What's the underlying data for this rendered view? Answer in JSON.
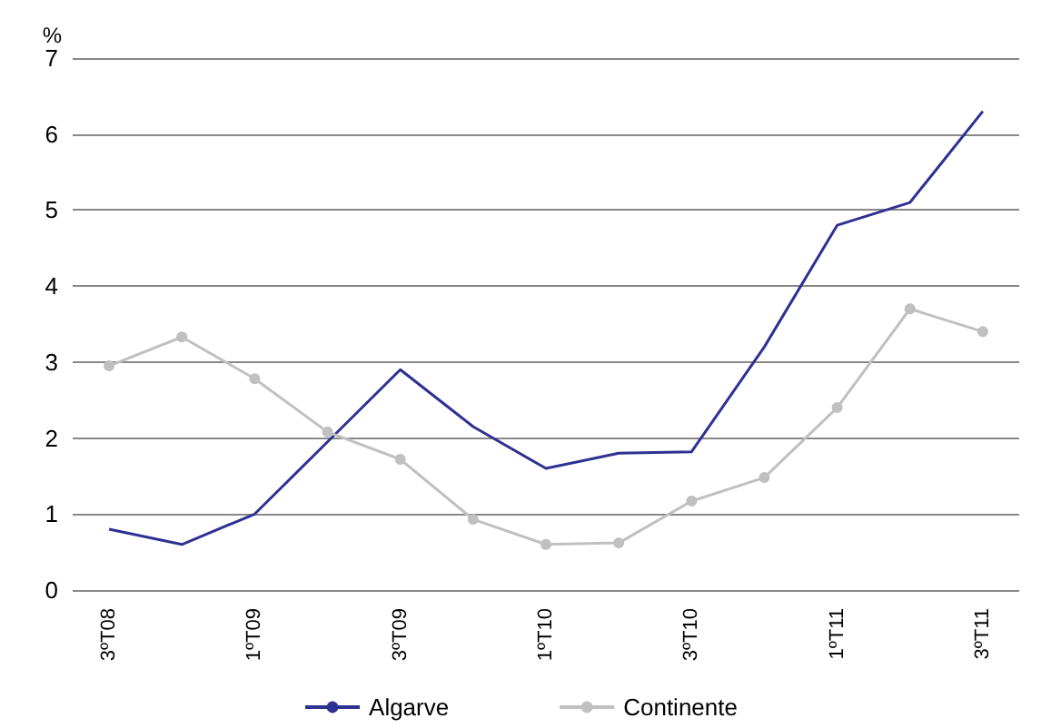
{
  "chart_data": {
    "type": "line",
    "ylabel": "%",
    "categories": [
      "3ºT08",
      null,
      "1ºT09",
      null,
      "3ºT09",
      null,
      "1ºT10",
      null,
      "3ºT10",
      null,
      "1ºT11",
      null,
      "3ºT11"
    ],
    "series": [
      {
        "name": "Algarve",
        "color": "#2e3192",
        "marker": "none",
        "values": [
          0.8,
          0.6,
          1.0,
          1.95,
          2.9,
          2.15,
          1.6,
          1.8,
          1.82,
          3.2,
          4.8,
          5.1,
          6.3
        ]
      },
      {
        "name": "Continente",
        "color": "#c0c0c0",
        "marker": "circle",
        "values": [
          2.95,
          3.33,
          2.78,
          2.08,
          1.72,
          0.93,
          0.6,
          0.62,
          1.17,
          1.48,
          2.4,
          3.7,
          3.4
        ]
      }
    ],
    "ylim": [
      0,
      7
    ],
    "yticks": [
      0,
      1,
      2,
      3,
      4,
      5,
      6,
      7
    ],
    "grid": "y",
    "legend": "bottom"
  }
}
